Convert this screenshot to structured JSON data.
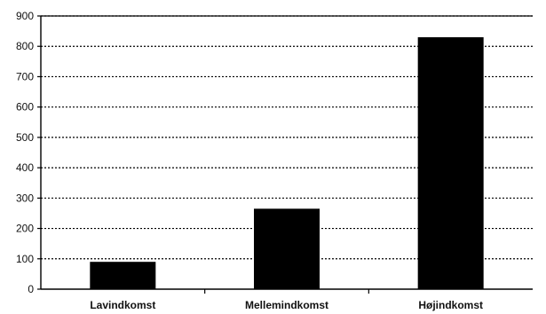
{
  "chart_data": {
    "type": "bar",
    "categories": [
      "Lavindkomst",
      "Mellemindkomst",
      "Højindkomst"
    ],
    "values": [
      90,
      265,
      830
    ],
    "title": "",
    "xlabel": "",
    "ylabel": "",
    "ylim": [
      0,
      900
    ],
    "yticks": [
      "0",
      "100",
      "200",
      "300",
      "400",
      "500",
      "600",
      "700",
      "800",
      "900"
    ],
    "grid": true,
    "grid_style": "dotted",
    "bar_color": "#000000",
    "legend": "none"
  }
}
